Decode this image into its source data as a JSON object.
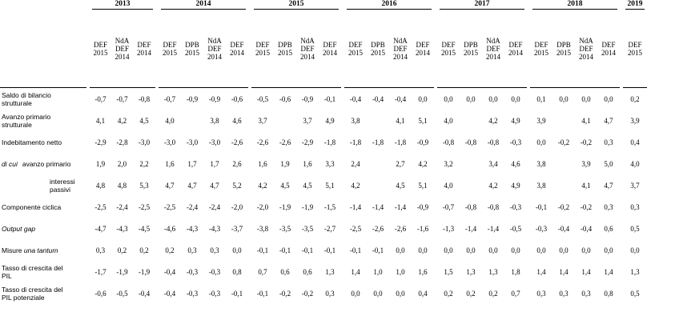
{
  "years": [
    "2013",
    "2014",
    "2015",
    "2016",
    "2017",
    "2018",
    "2019"
  ],
  "subheaders": {
    "2013": [
      [
        "DEF",
        "2015"
      ],
      [
        "NdA",
        "DEF",
        "2014"
      ],
      [
        "DEF",
        "2014"
      ]
    ],
    "2014": [
      [
        "DEF",
        "2015"
      ],
      [
        "DPB",
        "2015"
      ],
      [
        "NdA",
        "DEF",
        "2014"
      ],
      [
        "DEF",
        "2014"
      ]
    ],
    "2015": [
      [
        "DEF",
        "2015"
      ],
      [
        "DPB",
        "2015"
      ],
      [
        "NdA",
        "DEF",
        "2014"
      ],
      [
        "DEF",
        "2014"
      ]
    ],
    "2016": [
      [
        "DEF",
        "2015"
      ],
      [
        "DPB",
        "2015"
      ],
      [
        "NdA",
        "DEF",
        "2014"
      ],
      [
        "DEF",
        "2014"
      ]
    ],
    "2017": [
      [
        "DEF",
        "2015"
      ],
      [
        "DPB",
        "2015"
      ],
      [
        "NdA",
        "DEF",
        "2014"
      ],
      [
        "DEF",
        "2014"
      ]
    ],
    "2018": [
      [
        "DEF",
        "2015"
      ],
      [
        "DPB",
        "2015"
      ],
      [
        "NdA",
        "DEF",
        "2014"
      ],
      [
        "DEF",
        "2014"
      ]
    ],
    "2019": [
      [
        "DEF",
        "2015"
      ]
    ]
  },
  "rows": [
    {
      "label": [
        "Saldo di bilancio",
        "strutturale"
      ],
      "values": [
        "-0,7",
        "-0,7",
        "-0,8",
        "-0,7",
        "-0,9",
        "-0,9",
        "-0,6",
        "-0,5",
        "-0,6",
        "-0,9",
        "-0,1",
        "-0,4",
        "-0,4",
        "-0,4",
        "0,0",
        "0,0",
        "0,0",
        "0,0",
        "0,0",
        "0,1",
        "0,0",
        "0,0",
        "0,0",
        "0,2"
      ]
    },
    {
      "label": [
        "Avanzo primario",
        "strutturale"
      ],
      "values": [
        "4,1",
        "4,2",
        "4,5",
        "4,0",
        "",
        "3,8",
        "4,6",
        "3,7",
        "",
        "3,7",
        "4,9",
        "3,8",
        "",
        "4,1",
        "5,1",
        "4,0",
        "",
        "4,2",
        "4,9",
        "3,9",
        "",
        "4,1",
        "4,7",
        "3,9"
      ]
    },
    {
      "label": [
        "Indebitamento netto"
      ],
      "values": [
        "-2,9",
        "-2,8",
        "-3,0",
        "-3,0",
        "-3,0",
        "-3,0",
        "-2,6",
        "-2,6",
        "-2,6",
        "-2,9",
        "-1,8",
        "-1,8",
        "-1,8",
        "-1,8",
        "-0,9",
        "-0,8",
        "-0,8",
        "-0,8",
        "-0,3",
        "0,0",
        "-0,2",
        "-0,2",
        "0,3",
        "0,4"
      ]
    },
    {
      "label": [
        "di cui",
        "avanzo primario"
      ],
      "values": [
        "1,9",
        "2,0",
        "2,2",
        "1,6",
        "1,7",
        "1,7",
        "2,6",
        "1,6",
        "1,9",
        "1,6",
        "3,3",
        "2,4",
        "",
        "2,7",
        "4,2",
        "3,2",
        "",
        "3,4",
        "4,6",
        "3,8",
        "",
        "3,9",
        "5,0",
        "4,0"
      ]
    },
    {
      "label": [
        "interessi passivi"
      ],
      "values": [
        "4,8",
        "4,8",
        "5,3",
        "4,7",
        "4,7",
        "4,7",
        "5,2",
        "4,2",
        "4,5",
        "4,5",
        "5,1",
        "4,2",
        "",
        "4,5",
        "5,1",
        "4,0",
        "",
        "4,2",
        "4,9",
        "3,8",
        "",
        "4,1",
        "4,7",
        "3,7"
      ]
    },
    {
      "label": [
        "Componente ciclica"
      ],
      "values": [
        "-2,5",
        "-2,4",
        "-2,5",
        "-2,5",
        "-2,4",
        "-2,4",
        "-2,0",
        "-2,0",
        "-1,9",
        "-1,9",
        "-1,5",
        "-1,4",
        "-1,4",
        "-1,4",
        "-0,9",
        "-0,7",
        "-0,8",
        "-0,8",
        "-0,3",
        "-0,1",
        "-0,2",
        "-0,2",
        "0,3",
        "0,3"
      ]
    },
    {
      "label": [
        "Output gap"
      ],
      "values": [
        "-4,7",
        "-4,3",
        "-4,5",
        "-4,6",
        "-4,3",
        "-4,3",
        "-3,7",
        "-3,8",
        "-3,5",
        "-3,5",
        "-2,7",
        "-2,5",
        "-2,6",
        "-2,6",
        "-1,6",
        "-1,3",
        "-1,4",
        "-1,4",
        "-0,5",
        "-0,3",
        "-0,4",
        "-0,4",
        "0,6",
        "0,5"
      ]
    },
    {
      "label": [
        "Misure",
        "una tantum"
      ],
      "values": [
        "0,3",
        "0,2",
        "0,2",
        "0,2",
        "0,3",
        "0,3",
        "0,0",
        "-0,1",
        "-0,1",
        "-0,1",
        "-0,1",
        "-0,1",
        "-0,1",
        "0,0",
        "0,0",
        "0,0",
        "0,0",
        "0,0",
        "0,0",
        "0,0",
        "0,0",
        "0,0",
        "0,0",
        "0,0"
      ]
    },
    {
      "label": [
        "Tasso di crescita del",
        "PIL"
      ],
      "values": [
        "-1,7",
        "-1,9",
        "-1,9",
        "-0,4",
        "-0,3",
        "-0,3",
        "0,8",
        "0,7",
        "0,6",
        "0,6",
        "1,3",
        "1,4",
        "1,0",
        "1,0",
        "1,6",
        "1,5",
        "1,3",
        "1,3",
        "1,8",
        "1,4",
        "1,4",
        "1,4",
        "1,4",
        "1,3"
      ]
    },
    {
      "label": [
        "Tasso di crescita del",
        "PIL potenziale"
      ],
      "values": [
        "-0,6",
        "-0,5",
        "-0,4",
        "-0,4",
        "-0,3",
        "-0,3",
        "-0,1",
        "-0,1",
        "-0,2",
        "-0,2",
        "0,3",
        "0,0",
        "0,0",
        "0,0",
        "0,4",
        "0,2",
        "0,2",
        "0,2",
        "0,7",
        "0,3",
        "0,3",
        "0,3",
        "0,8",
        "0,5"
      ]
    }
  ]
}
